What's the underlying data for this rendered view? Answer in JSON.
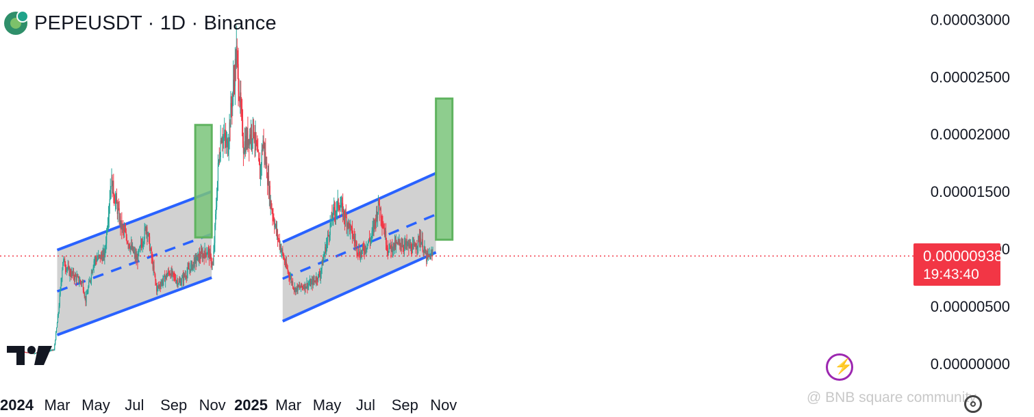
{
  "header": {
    "title": "PEPEUSDT · 1D · Binance"
  },
  "price_tag": {
    "value": "0.00000938",
    "countdown": "19:43:40"
  },
  "watermark": "@ BNB square community",
  "colors": {
    "up": "#26a69a",
    "down": "#f23645",
    "channel_line": "#2962ff",
    "channel_fill": "#cfcfcf",
    "target_box": "#7ac47a",
    "price_line": "#f23645"
  },
  "chart_data": {
    "type": "candlestick",
    "title": "PEPEUSDT · 1D · Binance",
    "x_ticks": [
      {
        "label": "2024",
        "date": "2024-01-01",
        "bold": true
      },
      {
        "label": "Mar",
        "date": "2024-03-01"
      },
      {
        "label": "May",
        "date": "2024-05-01"
      },
      {
        "label": "Jul",
        "date": "2024-07-01"
      },
      {
        "label": "Sep",
        "date": "2024-09-01"
      },
      {
        "label": "Nov",
        "date": "2024-11-01"
      },
      {
        "label": "2025",
        "date": "2025-01-01",
        "bold": true
      },
      {
        "label": "Mar",
        "date": "2025-03-01"
      },
      {
        "label": "May",
        "date": "2025-05-01"
      },
      {
        "label": "Jul",
        "date": "2025-07-01"
      },
      {
        "label": "Sep",
        "date": "2025-09-01"
      },
      {
        "label": "Nov",
        "date": "2025-11-01"
      }
    ],
    "y_ticks": [
      "0.00000000",
      "0.00000500",
      "0.00001000",
      "0.00001500",
      "0.00002000",
      "0.00002500",
      "0.00003000"
    ],
    "ylim": [
      0,
      3e-05
    ],
    "last_price": 9.38e-06,
    "price_anchors": [
      [
        "2023-12-25",
        1.1e-06
      ],
      [
        "2024-01-25",
        9e-07
      ],
      [
        "2024-02-25",
        1.2e-06
      ],
      [
        "2024-03-03",
        4.5e-06
      ],
      [
        "2024-03-10",
        9e-06
      ],
      [
        "2024-03-20",
        8e-06
      ],
      [
        "2024-04-10",
        7e-06
      ],
      [
        "2024-04-15",
        5.5e-06
      ],
      [
        "2024-04-28",
        9e-06
      ],
      [
        "2024-05-15",
        9.5e-06
      ],
      [
        "2024-05-25",
        1.6e-05
      ],
      [
        "2024-06-10",
        1.2e-05
      ],
      [
        "2024-07-05",
        9e-06
      ],
      [
        "2024-07-20",
        1.2e-05
      ],
      [
        "2024-08-05",
        6.5e-06
      ],
      [
        "2024-08-25",
        8e-06
      ],
      [
        "2024-09-10",
        7e-06
      ],
      [
        "2024-09-25",
        8.2e-06
      ],
      [
        "2024-10-10",
        9.3e-06
      ],
      [
        "2024-10-25",
        9.8e-06
      ],
      [
        "2024-11-02",
        8.5e-06
      ],
      [
        "2024-11-10",
        1.7e-05
      ],
      [
        "2024-11-15",
        2e-05
      ],
      [
        "2024-11-25",
        1.9e-05
      ],
      [
        "2024-12-09",
        2.7e-05
      ],
      [
        "2024-12-20",
        1.9e-05
      ],
      [
        "2025-01-05",
        2.05e-05
      ],
      [
        "2025-01-15",
        1.65e-05
      ],
      [
        "2025-01-20",
        1.95e-05
      ],
      [
        "2025-02-01",
        1.4e-05
      ],
      [
        "2025-02-10",
        1.15e-05
      ],
      [
        "2025-02-25",
        8.5e-06
      ],
      [
        "2025-03-11",
        6.5e-06
      ],
      [
        "2025-04-07",
        7e-06
      ],
      [
        "2025-04-20",
        7.8e-06
      ],
      [
        "2025-05-10",
        1.3e-05
      ],
      [
        "2025-05-20",
        1.4e-05
      ],
      [
        "2025-06-05",
        1.2e-05
      ],
      [
        "2025-06-22",
        9.5e-06
      ],
      [
        "2025-07-10",
        1.1e-05
      ],
      [
        "2025-07-22",
        1.4e-05
      ],
      [
        "2025-08-05",
        1e-05
      ],
      [
        "2025-08-25",
        1.05e-05
      ],
      [
        "2025-09-15",
        1e-05
      ],
      [
        "2025-09-25",
        1.1e-05
      ],
      [
        "2025-10-05",
        9.2e-06
      ],
      [
        "2025-10-15",
        9.5e-06
      ]
    ],
    "channels": [
      {
        "start": "2024-03-01",
        "end": "2024-10-31",
        "upper": [
          9.9e-06,
          1.5e-05
        ],
        "middle": [
          6.3e-06,
          1.13e-05
        ],
        "lower": [
          2.5e-06,
          7.5e-06
        ]
      },
      {
        "start": "2025-02-20",
        "end": "2025-10-20",
        "upper": [
          1.06e-05,
          1.66e-05
        ],
        "middle": [
          7.4e-06,
          1.3e-05
        ],
        "lower": [
          3.7e-06,
          9.7e-06
        ]
      }
    ],
    "target_boxes": [
      {
        "start": "2024-10-05",
        "end": "2024-10-31",
        "bottom": 1.1e-05,
        "top": 2.08e-05
      },
      {
        "start": "2025-10-20",
        "end": "2025-11-15",
        "bottom": 1.08e-05,
        "top": 2.31e-05
      }
    ]
  }
}
